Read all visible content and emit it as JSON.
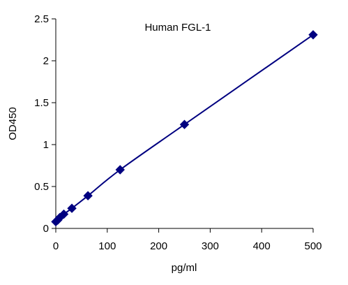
{
  "chart_data": {
    "type": "scatter",
    "title": "Human  FGL-1",
    "xlabel": "pg/ml",
    "ylabel": "OD450",
    "xlim": [
      0,
      500
    ],
    "ylim": [
      0,
      2.5
    ],
    "x_ticks": [
      "0",
      "100",
      "200",
      "300",
      "400",
      "500"
    ],
    "y_ticks": [
      "0",
      "0.5",
      "1",
      "1.5",
      "2",
      "2.5"
    ],
    "grid": false,
    "legend": "none",
    "marker": "diamond",
    "trendline": "fitted smooth curve",
    "series": [
      {
        "x": [
          0,
          3.9,
          7.8,
          15.6,
          31.25,
          62.5,
          125,
          250,
          500
        ],
        "y": [
          0.08,
          0.1,
          0.13,
          0.17,
          0.24,
          0.39,
          0.7,
          1.24,
          2.31
        ]
      }
    ],
    "colors": {
      "series": "#000080",
      "axis": "#000000"
    }
  }
}
